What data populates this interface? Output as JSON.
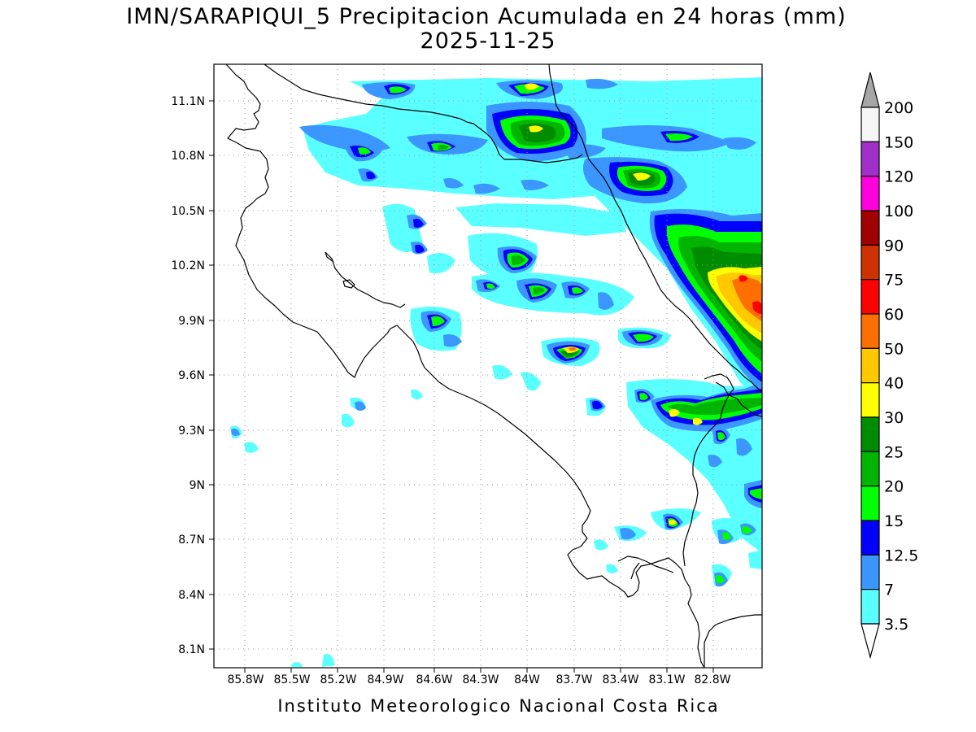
{
  "title": {
    "line1": "IMN/SARAPIQUI_5 Precipitacion Acumulada en 24 horas (mm)",
    "line2": "2025-11-25"
  },
  "footer": "Instituto Meteorologico Nacional Costa Rica",
  "map": {
    "lon_range": [
      -86.0,
      -82.6
    ],
    "lat_range": [
      8.0,
      11.3
    ],
    "lat_ticks": [
      "11.1N",
      "10.8N",
      "10.5N",
      "10.2N",
      "9.9N",
      "9.6N",
      "9.3N",
      "9N",
      "8.7N",
      "8.4N",
      "8.1N"
    ],
    "lon_ticks": [
      "85.8W",
      "85.5W",
      "85.2W",
      "84.9W",
      "84.6W",
      "84.3W",
      "84W",
      "83.7W",
      "83.4W",
      "83.1W",
      "82.8W"
    ],
    "grid": true
  },
  "legend": {
    "units": "mm",
    "levels": [
      {
        "label": "200",
        "color": "#a6a6a6"
      },
      {
        "label": "150",
        "color": "#f5f5f5"
      },
      {
        "label": "120",
        "color": "#a030c8"
      },
      {
        "label": "100",
        "color": "#ff00dc"
      },
      {
        "label": "90",
        "color": "#a00000"
      },
      {
        "label": "75",
        "color": "#cd3200"
      },
      {
        "label": "60",
        "color": "#ff0000"
      },
      {
        "label": "50",
        "color": "#ff6e00"
      },
      {
        "label": "40",
        "color": "#ffc800"
      },
      {
        "label": "30",
        "color": "#ffff00"
      },
      {
        "label": "25",
        "color": "#008c00"
      },
      {
        "label": "20",
        "color": "#00b400"
      },
      {
        "label": "15",
        "color": "#00ff00"
      },
      {
        "label": "12.5",
        "color": "#0000ff"
      },
      {
        "label": "7",
        "color": "#3c96ff"
      },
      {
        "label": "3.5",
        "color": "#5affff"
      }
    ]
  }
}
